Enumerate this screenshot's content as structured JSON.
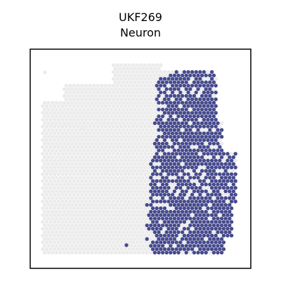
{
  "chart_data": {
    "type": "scatter",
    "title": [
      "UKF269",
      "Neuron"
    ],
    "xlabel": "",
    "ylabel": "",
    "axes_ticks": "none",
    "series": [
      {
        "role": "background-spots",
        "color": "#ebebeb"
      },
      {
        "role": "highlighted-spots",
        "color": "#464a8c"
      }
    ]
  }
}
